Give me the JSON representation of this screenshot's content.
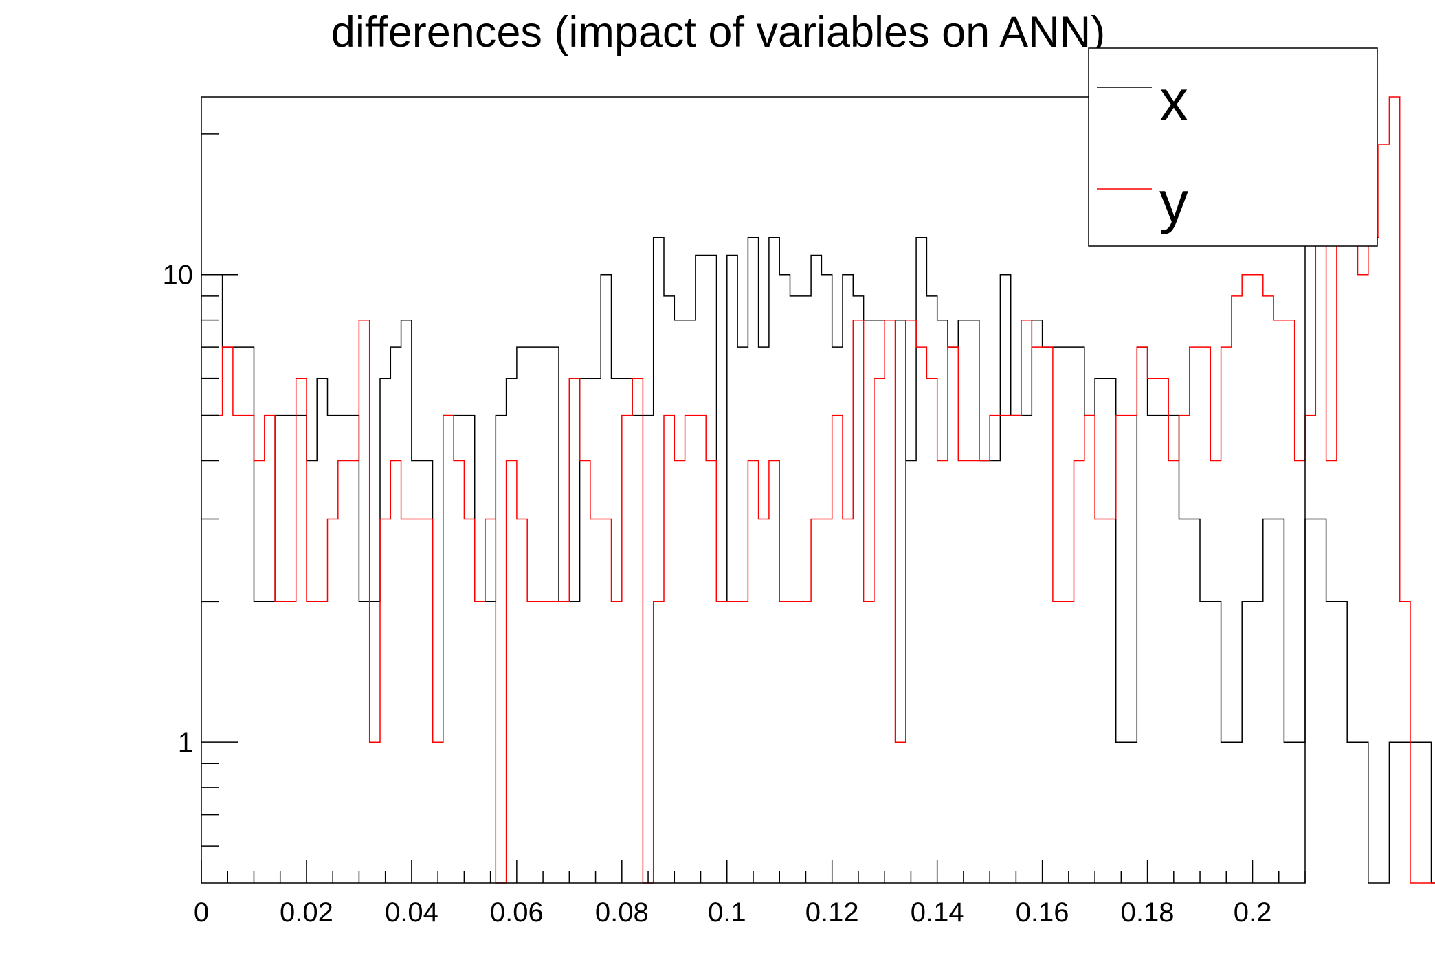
{
  "chart_data": {
    "type": "histogram",
    "title": "differences (impact of variables on ANN)",
    "xlabel": "",
    "ylabel": "",
    "x_range": [
      0,
      0.21
    ],
    "y_range": [
      0.5,
      24
    ],
    "y_scale": "log",
    "grid": false,
    "legend_position": "top-right",
    "x_ticks": [
      "0",
      "0.02",
      "0.04",
      "0.06",
      "0.08",
      "0.1",
      "0.12",
      "0.14",
      "0.16",
      "0.18",
      "0.2"
    ],
    "x_tick_values": [
      0,
      0.02,
      0.04,
      0.06,
      0.08,
      0.1,
      0.12,
      0.14,
      0.16,
      0.18,
      0.2
    ],
    "y_ticks": [
      "1",
      "10"
    ],
    "y_tick_values": [
      1,
      10
    ],
    "bin_start": 0.002,
    "bin_width": 0.002,
    "series": [
      {
        "name": "x",
        "color": "#000000",
        "values": [
          10,
          7,
          7,
          7,
          2,
          2,
          5,
          5,
          5,
          4,
          6,
          5,
          5,
          5,
          2,
          2,
          6,
          7,
          8,
          4,
          4,
          1,
          5,
          5,
          5,
          2,
          2,
          5,
          6,
          7,
          7,
          7,
          7,
          2,
          2,
          6,
          6,
          10,
          6,
          6,
          5,
          5,
          12,
          9,
          8,
          8,
          11,
          11,
          2,
          11,
          7,
          12,
          7,
          12,
          10,
          9,
          9,
          11,
          10,
          7,
          10,
          9,
          8,
          8,
          8,
          8,
          4,
          12,
          9,
          8,
          7,
          8,
          8,
          4,
          4,
          10,
          5,
          5,
          8,
          7,
          7,
          7,
          7,
          5,
          6,
          6,
          1,
          1,
          7,
          5,
          5,
          5,
          3,
          3,
          2,
          2,
          1,
          1,
          2,
          2,
          3,
          3,
          1,
          1,
          3,
          3,
          2,
          2,
          1,
          1,
          0,
          0,
          1,
          1,
          1,
          1,
          0,
          0,
          0,
          0,
          0,
          0,
          0,
          0,
          0,
          0
        ]
      },
      {
        "name": "y",
        "color": "#ff0000",
        "values": [
          5,
          7,
          5,
          5,
          4,
          5,
          2,
          2,
          6,
          2,
          2,
          3,
          4,
          4,
          8,
          1,
          3,
          4,
          3,
          3,
          3,
          1,
          5,
          4,
          3,
          2,
          3,
          0,
          4,
          3,
          2,
          2,
          2,
          2,
          6,
          4,
          3,
          3,
          2,
          5,
          6,
          0,
          2,
          5,
          4,
          5,
          5,
          4,
          2,
          2,
          2,
          4,
          3,
          4,
          2,
          2,
          2,
          3,
          3,
          5,
          3,
          8,
          2,
          6,
          8,
          1,
          8,
          7,
          6,
          4,
          7,
          4,
          4,
          4,
          5,
          5,
          5,
          8,
          7,
          7,
          2,
          2,
          4,
          5,
          3,
          3,
          5,
          5,
          7,
          6,
          6,
          4,
          5,
          7,
          7,
          4,
          7,
          9,
          10,
          10,
          9,
          8,
          8,
          4,
          5,
          13,
          4,
          12,
          13,
          10,
          12,
          19,
          24,
          2,
          0,
          0,
          0,
          0,
          0,
          0,
          0,
          0,
          0,
          0,
          0,
          0,
          0,
          0
        ]
      }
    ]
  }
}
